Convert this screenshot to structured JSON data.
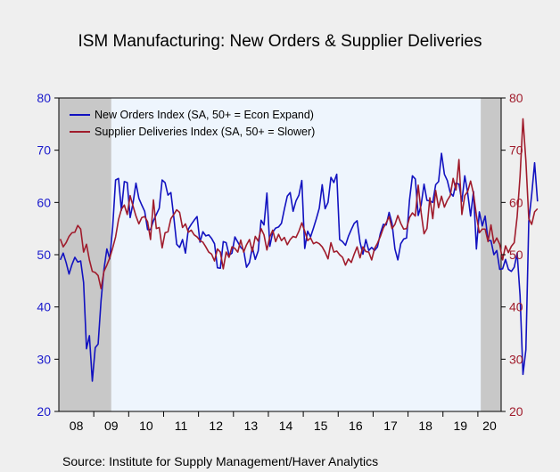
{
  "chart_data": {
    "type": "line",
    "title": "ISM Manufacturing: New Orders & Supplier Deliveries",
    "source": "Source:   Institute for Supply Management/Haver Analytics",
    "left_axis": {
      "ylim": [
        20,
        80
      ],
      "ticks": [
        "20",
        "30",
        "40",
        "50",
        "60",
        "70",
        "80"
      ]
    },
    "right_axis": {
      "ylim": [
        20,
        80
      ],
      "ticks": [
        "20",
        "30",
        "40",
        "50",
        "60",
        "70",
        "80"
      ]
    },
    "x_axis": {
      "start": "2008-01",
      "end": "2020-08",
      "labels": [
        "08",
        "09",
        "10",
        "11",
        "12",
        "13",
        "14",
        "15",
        "16",
        "17",
        "18",
        "19",
        "20"
      ]
    },
    "recessions": [
      {
        "start": "2008-01",
        "end": "2009-06"
      },
      {
        "start": "2020-02",
        "end": "2020-08"
      }
    ],
    "colors": {
      "new_orders": "#1212c0",
      "supplier_deliveries": "#a01c2c",
      "left_axis": "#1a1acc",
      "right_axis": "#a01c2c",
      "plot_background": "#eef5fd",
      "recession_shading": "#c8c8c8",
      "page_background": "#efefef"
    },
    "legend_position": "top-left",
    "series": [
      {
        "name": "New Orders Index (SA, 50+ = Econ Expand)",
        "axis": "left",
        "color": "#1212c0",
        "values": [
          49.0,
          50.3,
          48.5,
          46.3,
          48.1,
          49.5,
          48.6,
          48.8,
          44.7,
          32.0,
          34.5,
          25.8,
          32.2,
          32.9,
          41.2,
          47.2,
          51.1,
          49.2,
          55.3,
          64.3,
          64.6,
          58.5,
          64.0,
          63.8,
          57.1,
          59.9,
          63.7,
          60.8,
          59.5,
          58.3,
          54.8,
          54.8,
          56.5,
          57.7,
          58.9,
          64.3,
          63.8,
          61.4,
          61.9,
          57.2,
          52.0,
          51.4,
          52.9,
          50.3,
          54.9,
          55.8,
          56.6,
          57.3,
          52.4,
          54.4,
          53.6,
          53.8,
          53.1,
          52.1,
          47.5,
          47.4,
          52.5,
          52.3,
          49.9,
          50.3,
          53.4,
          52.4,
          51.4,
          50.9,
          47.6,
          48.5,
          51.4,
          49.1,
          50.7,
          56.6,
          55.7,
          61.8,
          51.6,
          54.3,
          55.1,
          55.3,
          56.0,
          58.7,
          61.2,
          61.9,
          58.3,
          60.3,
          61.4,
          64.2,
          51.2,
          54.5,
          53.4,
          55.1,
          56.9,
          58.9,
          63.4,
          58.8,
          60.0,
          64.8,
          63.8,
          65.4,
          52.9,
          52.5,
          51.8,
          53.5,
          54.8,
          56.0,
          56.5,
          52.4,
          50.1,
          52.9,
          50.8,
          51.4,
          50.8,
          51.5,
          54.1,
          55.8,
          55.7,
          58.1,
          56.0,
          51.1,
          49.0,
          52.1,
          53.0,
          53.2,
          60.4,
          65.1,
          64.5,
          57.5,
          59.5,
          63.5,
          60.4,
          60.3,
          60.0,
          63.4,
          64.0,
          69.4,
          65.4,
          64.2,
          61.9,
          61.2,
          63.7,
          63.5,
          60.2,
          65.1,
          61.8,
          57.4,
          62.1,
          51.1,
          58.2,
          55.5,
          57.4,
          52.7,
          52.7,
          50.0,
          50.8,
          47.2,
          47.3,
          49.1,
          47.2,
          46.8,
          47.6,
          50.3,
          42.2,
          27.1,
          31.8,
          56.4,
          61.5,
          67.6,
          60.2
        ]
      },
      {
        "name": "Supplier Deliveries Index (SA, 50+ = Slower)",
        "axis": "right",
        "color": "#a01c2c",
        "values": [
          53.0,
          51.5,
          52.3,
          53.5,
          54.2,
          54.3,
          55.6,
          54.9,
          50.5,
          52.0,
          49.0,
          46.8,
          46.6,
          46.0,
          43.5,
          46.8,
          48.0,
          49.4,
          51.3,
          53.4,
          56.7,
          58.7,
          59.5,
          57.7,
          61.3,
          59.3,
          57.4,
          55.9,
          57.1,
          57.3,
          56.3,
          52.9,
          60.5,
          55.0,
          55.2,
          51.3,
          54.2,
          54.4,
          56.9,
          57.7,
          58.6,
          58.1,
          55.2,
          55.9,
          54.3,
          54.7,
          53.8,
          53.4,
          52.7,
          52.4,
          51.5,
          50.5,
          50.1,
          48.8,
          51.1,
          50.5,
          47.3,
          50.5,
          49.5,
          51.5,
          51.2,
          50.5,
          52.8,
          50.5,
          51.9,
          52.9,
          50.6,
          53.5,
          52.6,
          55.0,
          53.8,
          50.9,
          53.4,
          54.7,
          52.5,
          53.9,
          52.7,
          53.3,
          51.9,
          52.9,
          53.5,
          53.3,
          54.5,
          56.1,
          54.5,
          52.7,
          53.2,
          52.1,
          52.4,
          52.1,
          51.5,
          50.5,
          49.2,
          52.3,
          50.5,
          50.7,
          50.0,
          49.5,
          48.0,
          49.2,
          48.5,
          50.1,
          51.5,
          49.4,
          51.5,
          50.6,
          50.5,
          49.0,
          51.2,
          52.2,
          53.5,
          55.1,
          56.1,
          57.3,
          55.0,
          55.8,
          57.5,
          56.0,
          54.9,
          55.0,
          57.1,
          58.0,
          57.4,
          63.3,
          58.1,
          54.0,
          55.0,
          60.9,
          56.9,
          62.3,
          59.0,
          61.2,
          59.1,
          60.4,
          61.3,
          64.6,
          62.4,
          68.2,
          57.7,
          61.3,
          62.1,
          64.1,
          61.7,
          57.5,
          54.2,
          54.9,
          54.9,
          52.5,
          55.7,
          52.2,
          53.2,
          52.0,
          49.0,
          51.7,
          50.4,
          51.6,
          52.3,
          57.3,
          65.0,
          76.0,
          68.0,
          56.9,
          55.8,
          58.2,
          58.8
        ]
      }
    ]
  }
}
